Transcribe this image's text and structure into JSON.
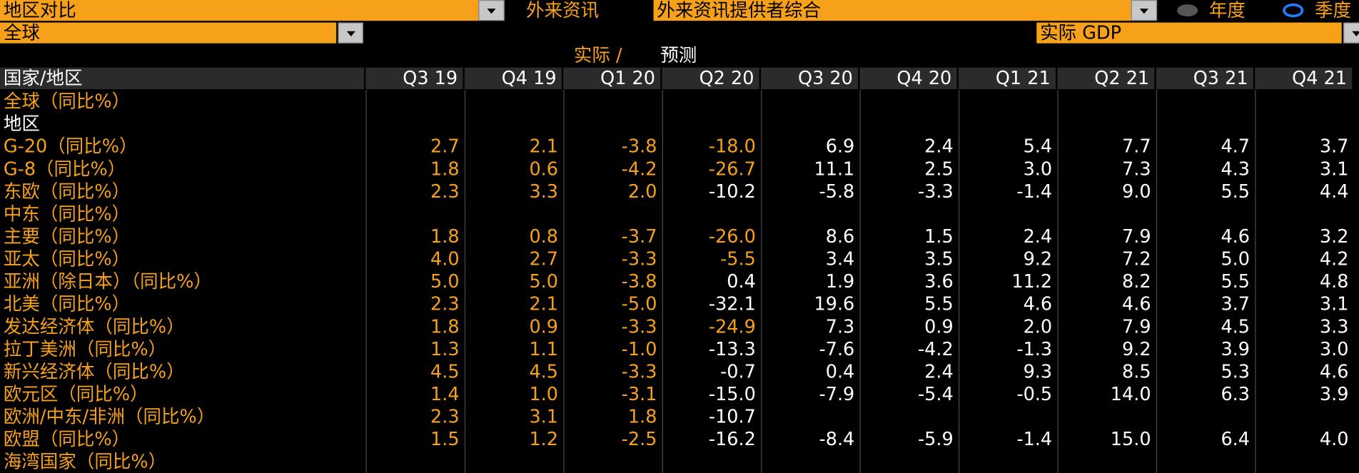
{
  "toolbar": {
    "comparison": "地区对比",
    "source_label": "外来资讯",
    "source": "外来资讯提供者综合",
    "annual": "年度",
    "quarterly": "季度",
    "region": "全球",
    "metric": "实际 GDP"
  },
  "legend": {
    "actual": "实际 /",
    "forecast": "预测"
  },
  "table": {
    "header": "国家/地区",
    "columns": [
      "Q3 19",
      "Q4 19",
      "Q1 20",
      "Q2 20",
      "Q3 20",
      "Q4 20",
      "Q1 21",
      "Q2 21",
      "Q3 21",
      "Q4 21"
    ],
    "actual_color": "#f7a11a",
    "forecast_color": "#ffffff",
    "rows": [
      {
        "label": "全球（同比%）",
        "label_color": "#f7a11a"
      },
      {
        "label": "地区",
        "label_color": "#ffffff"
      },
      {
        "label": "G-20（同比%）",
        "label_color": "#f7a11a",
        "actual_columns": 4,
        "values": [
          "2.7",
          "2.1",
          "-3.8",
          "-18.0",
          "6.9",
          "2.4",
          "5.4",
          "7.7",
          "4.7",
          "3.7"
        ]
      },
      {
        "label": "G-8（同比%）",
        "label_color": "#f7a11a",
        "actual_columns": 4,
        "values": [
          "1.8",
          "0.6",
          "-4.2",
          "-26.7",
          "11.1",
          "2.5",
          "3.0",
          "7.3",
          "4.3",
          "3.1"
        ]
      },
      {
        "label": "东欧（同比%）",
        "label_color": "#f7a11a",
        "actual_columns": 3,
        "values": [
          "2.3",
          "3.3",
          "2.0",
          "-10.2",
          "-5.8",
          "-3.3",
          "-1.4",
          "9.0",
          "5.5",
          "4.4"
        ]
      },
      {
        "label": "中东（同比%）",
        "label_color": "#f7a11a"
      },
      {
        "label": "主要（同比%）",
        "label_color": "#f7a11a",
        "actual_columns": 4,
        "values": [
          "1.8",
          "0.8",
          "-3.7",
          "-26.0",
          "8.6",
          "1.5",
          "2.4",
          "7.9",
          "4.6",
          "3.2"
        ]
      },
      {
        "label": "亚太（同比%）",
        "label_color": "#f7a11a",
        "actual_columns": 4,
        "values": [
          "4.0",
          "2.7",
          "-3.3",
          "-5.5",
          "3.4",
          "3.5",
          "9.2",
          "7.2",
          "5.0",
          "4.2"
        ]
      },
      {
        "label": "亚洲（除日本）（同比%）",
        "label_color": "#f7a11a",
        "actual_columns": 3,
        "values": [
          "5.0",
          "5.0",
          "-3.8",
          "0.4",
          "1.9",
          "3.6",
          "11.2",
          "8.2",
          "5.5",
          "4.8"
        ]
      },
      {
        "label": "北美（同比%）",
        "label_color": "#f7a11a",
        "actual_columns": 3,
        "values": [
          "2.3",
          "2.1",
          "-5.0",
          "-32.1",
          "19.6",
          "5.5",
          "4.6",
          "4.6",
          "3.7",
          "3.1"
        ]
      },
      {
        "label": "发达经济体（同比%）",
        "label_color": "#f7a11a",
        "actual_columns": 4,
        "values": [
          "1.8",
          "0.9",
          "-3.3",
          "-24.9",
          "7.3",
          "0.9",
          "2.0",
          "7.9",
          "4.5",
          "3.3"
        ]
      },
      {
        "label": "拉丁美洲（同比%）",
        "label_color": "#f7a11a",
        "actual_columns": 3,
        "values": [
          "1.3",
          "1.1",
          "-1.0",
          "-13.3",
          "-7.6",
          "-4.2",
          "-1.3",
          "9.2",
          "3.9",
          "3.0"
        ]
      },
      {
        "label": "新兴经济体（同比%）",
        "label_color": "#f7a11a",
        "actual_columns": 3,
        "values": [
          "4.5",
          "4.5",
          "-3.3",
          "-0.7",
          "0.4",
          "2.4",
          "9.3",
          "8.5",
          "5.3",
          "4.6"
        ]
      },
      {
        "label": "欧元区（同比%）",
        "label_color": "#f7a11a",
        "actual_columns": 3,
        "values": [
          "1.4",
          "1.0",
          "-3.1",
          "-15.0",
          "-7.9",
          "-5.4",
          "-0.5",
          "14.0",
          "6.3",
          "3.9"
        ]
      },
      {
        "label": "欧洲/中东/非洲（同比%）",
        "label_color": "#f7a11a",
        "actual_columns": 3,
        "values": [
          "2.3",
          "3.1",
          "1.8",
          "-10.7",
          null,
          null,
          null,
          null,
          null,
          null
        ]
      },
      {
        "label": "欧盟（同比%）",
        "label_color": "#f7a11a",
        "actual_columns": 3,
        "values": [
          "1.5",
          "1.2",
          "-2.5",
          "-16.2",
          "-8.4",
          "-5.9",
          "-1.4",
          "15.0",
          "6.4",
          "4.0"
        ]
      },
      {
        "label": "海湾国家（同比%）",
        "label_color": "#f7a11a"
      }
    ]
  }
}
